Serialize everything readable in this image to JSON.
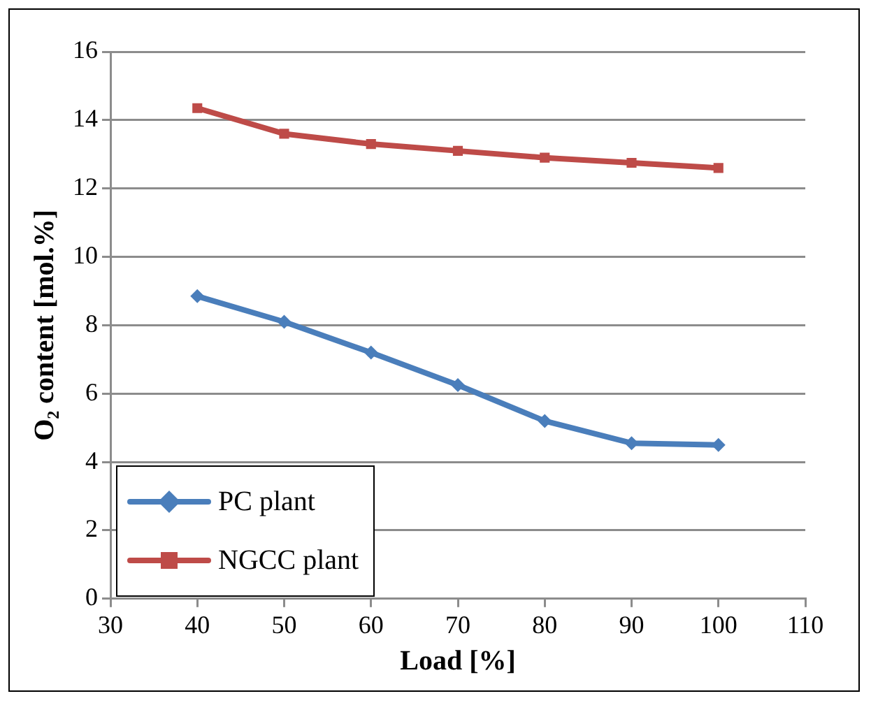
{
  "chart_data": {
    "type": "line",
    "xlabel": "Load [%]",
    "ylabel": "O₂ content [mol.%]",
    "x": [
      40,
      50,
      60,
      70,
      80,
      90,
      100
    ],
    "series": [
      {
        "name": "PC plant",
        "color": "#4a7ebb",
        "marker": "diamond",
        "values": [
          8.85,
          8.1,
          7.2,
          6.25,
          5.2,
          4.55,
          4.5
        ]
      },
      {
        "name": "NGCC plant",
        "color": "#be4b48",
        "marker": "square",
        "values": [
          14.35,
          13.6,
          13.3,
          13.1,
          12.9,
          12.75,
          12.6
        ]
      }
    ],
    "xlim": [
      30,
      110
    ],
    "xticks": [
      30,
      40,
      50,
      60,
      70,
      80,
      90,
      100,
      110
    ],
    "ylim": [
      0,
      16
    ],
    "yticks": [
      0,
      2,
      4,
      6,
      8,
      10,
      12,
      14,
      16
    ],
    "grid": "y",
    "legend": "bottom left",
    "line_style": "solid"
  }
}
